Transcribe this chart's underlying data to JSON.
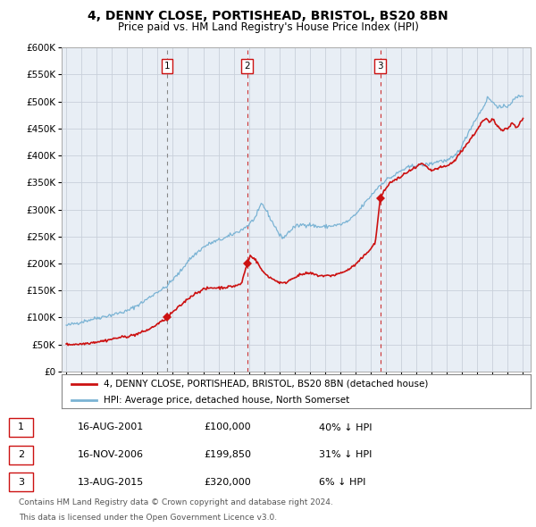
{
  "title1": "4, DENNY CLOSE, PORTISHEAD, BRISTOL, BS20 8BN",
  "title2": "Price paid vs. HM Land Registry's House Price Index (HPI)",
  "ylim": [
    0,
    600000
  ],
  "ytick_values": [
    0,
    50000,
    100000,
    150000,
    200000,
    250000,
    300000,
    350000,
    400000,
    450000,
    500000,
    550000,
    600000
  ],
  "ytick_labels": [
    "£0",
    "£50K",
    "£100K",
    "£150K",
    "£200K",
    "£250K",
    "£300K",
    "£350K",
    "£400K",
    "£450K",
    "£500K",
    "£550K",
    "£600K"
  ],
  "xlim_start": 1994.7,
  "xlim_end": 2025.5,
  "xticks": [
    1995,
    1996,
    1997,
    1998,
    1999,
    2000,
    2001,
    2002,
    2003,
    2004,
    2005,
    2006,
    2007,
    2008,
    2009,
    2010,
    2011,
    2012,
    2013,
    2014,
    2015,
    2016,
    2017,
    2018,
    2019,
    2020,
    2021,
    2022,
    2023,
    2024,
    2025
  ],
  "hpi_color": "#7ab3d4",
  "price_color": "#cc1111",
  "plot_bg_color": "#e8eef5",
  "grid_color": "#c8d0da",
  "vline1_x": 2001.62,
  "vline2_x": 2006.88,
  "vline3_x": 2015.62,
  "sale1_price": 100000,
  "sale2_price": 199850,
  "sale3_price": 320000,
  "sale1_date": "16-AUG-2001",
  "sale2_date": "16-NOV-2006",
  "sale3_date": "13-AUG-2015",
  "sale1_pct": "40% ↓ HPI",
  "sale2_pct": "31% ↓ HPI",
  "sale3_pct": "6% ↓ HPI",
  "legend1": "4, DENNY CLOSE, PORTISHEAD, BRISTOL, BS20 8BN (detached house)",
  "legend2": "HPI: Average price, detached house, North Somerset",
  "footnote1": "Contains HM Land Registry data © Crown copyright and database right 2024.",
  "footnote2": "This data is licensed under the Open Government Licence v3.0."
}
